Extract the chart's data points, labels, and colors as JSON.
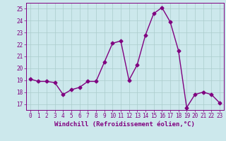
{
  "x": [
    0,
    1,
    2,
    3,
    4,
    5,
    6,
    7,
    8,
    9,
    10,
    11,
    12,
    13,
    14,
    15,
    16,
    17,
    18,
    19,
    20,
    21,
    22,
    23
  ],
  "y": [
    19.1,
    18.9,
    18.9,
    18.8,
    17.8,
    18.2,
    18.4,
    18.9,
    18.9,
    20.5,
    22.1,
    22.3,
    19.0,
    20.3,
    22.8,
    24.6,
    25.1,
    23.9,
    21.5,
    16.7,
    17.8,
    18.0,
    17.8,
    17.1
  ],
  "line_color": "#800080",
  "marker": "D",
  "marker_size": 2.5,
  "bg_color": "#cce8ec",
  "grid_color": "#aacccc",
  "ylim": [
    16.5,
    25.5
  ],
  "yticks": [
    17,
    18,
    19,
    20,
    21,
    22,
    23,
    24,
    25
  ],
  "xlim": [
    -0.5,
    23.5
  ],
  "xticks": [
    0,
    1,
    2,
    3,
    4,
    5,
    6,
    7,
    8,
    9,
    10,
    11,
    12,
    13,
    14,
    15,
    16,
    17,
    18,
    19,
    20,
    21,
    22,
    23
  ],
  "xlabel": "Windchill (Refroidissement éolien,°C)",
  "xlabel_fontsize": 6.5,
  "tick_fontsize": 5.5,
  "line_width": 1.0
}
